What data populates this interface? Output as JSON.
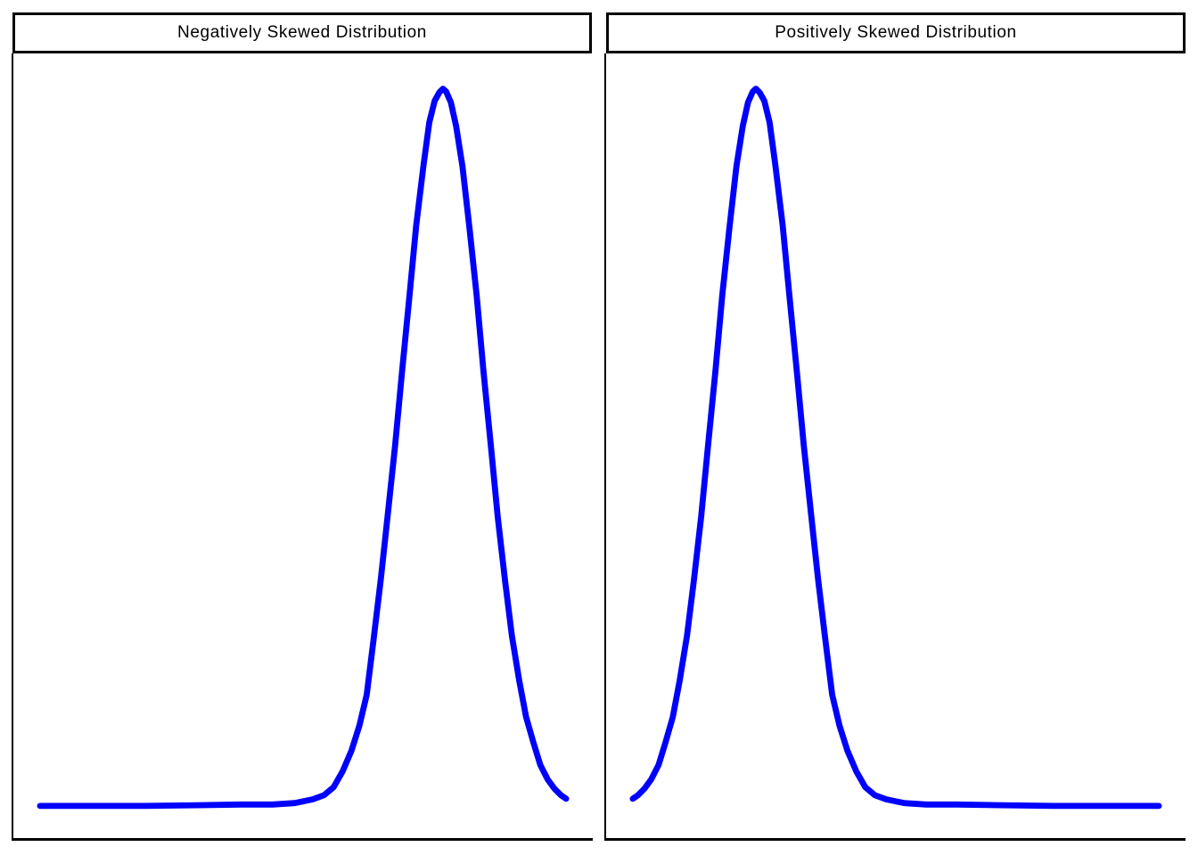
{
  "figure": {
    "background": "#ffffff",
    "frame_color": "#000000",
    "description": "Side-by-side comparison of skewed distribution density curves"
  },
  "chart_data": [
    {
      "type": "line",
      "title": "Negatively Skewed Distribution",
      "skew": "negative",
      "xlabel": "",
      "ylabel": "",
      "axes_visible": false,
      "tick_labels": "none",
      "grid": false,
      "legend": "none",
      "frame": "left-bottom",
      "layout": {
        "x_margin_frac": 0.046,
        "baseline_margin_frac": 0.041,
        "top_margin_frac": 0.045
      },
      "series": [
        {
          "name": "density",
          "color": "#0000FF",
          "stroke_width": 6.8,
          "points": [
            [
              0.0,
              0.0
            ],
            [
              0.096,
              0.0
            ],
            [
              0.197,
              0.0
            ],
            [
              0.299,
              0.001
            ],
            [
              0.383,
              0.002
            ],
            [
              0.442,
              0.002
            ],
            [
              0.484,
              0.004
            ],
            [
              0.518,
              0.009
            ],
            [
              0.54,
              0.015
            ],
            [
              0.558,
              0.026
            ],
            [
              0.575,
              0.048
            ],
            [
              0.592,
              0.077
            ],
            [
              0.607,
              0.112
            ],
            [
              0.621,
              0.155
            ],
            [
              0.634,
              0.232
            ],
            [
              0.648,
              0.317
            ],
            [
              0.661,
              0.406
            ],
            [
              0.675,
              0.503
            ],
            [
              0.688,
              0.605
            ],
            [
              0.702,
              0.709
            ],
            [
              0.715,
              0.809
            ],
            [
              0.729,
              0.894
            ],
            [
              0.74,
              0.953
            ],
            [
              0.75,
              0.983
            ],
            [
              0.759,
              0.995
            ],
            [
              0.766,
              1.0
            ],
            [
              0.772,
              0.996
            ],
            [
              0.781,
              0.981
            ],
            [
              0.791,
              0.948
            ],
            [
              0.803,
              0.892
            ],
            [
              0.816,
              0.808
            ],
            [
              0.83,
              0.711
            ],
            [
              0.843,
              0.606
            ],
            [
              0.857,
              0.502
            ],
            [
              0.87,
              0.403
            ],
            [
              0.884,
              0.314
            ],
            [
              0.897,
              0.237
            ],
            [
              0.911,
              0.174
            ],
            [
              0.924,
              0.124
            ],
            [
              0.938,
              0.088
            ],
            [
              0.951,
              0.057
            ],
            [
              0.965,
              0.037
            ],
            [
              0.978,
              0.024
            ],
            [
              0.99,
              0.015
            ],
            [
              1.0,
              0.01
            ]
          ]
        }
      ]
    },
    {
      "type": "line",
      "title": "Positively Skewed Distribution",
      "skew": "positive",
      "xlabel": "",
      "ylabel": "",
      "axes_visible": false,
      "tick_labels": "none",
      "grid": false,
      "legend": "none",
      "frame": "left-bottom",
      "layout": {
        "x_margin_frac": 0.046,
        "baseline_margin_frac": 0.041,
        "top_margin_frac": 0.045
      },
      "series": [
        {
          "name": "density",
          "color": "#0000FF",
          "stroke_width": 6.8,
          "points": [
            [
              0.0,
              0.01
            ],
            [
              0.01,
              0.015
            ],
            [
              0.022,
              0.024
            ],
            [
              0.035,
              0.037
            ],
            [
              0.049,
              0.057
            ],
            [
              0.062,
              0.088
            ],
            [
              0.076,
              0.124
            ],
            [
              0.089,
              0.174
            ],
            [
              0.103,
              0.237
            ],
            [
              0.116,
              0.314
            ],
            [
              0.13,
              0.403
            ],
            [
              0.143,
              0.502
            ],
            [
              0.157,
              0.606
            ],
            [
              0.17,
              0.711
            ],
            [
              0.184,
              0.808
            ],
            [
              0.197,
              0.892
            ],
            [
              0.209,
              0.948
            ],
            [
              0.219,
              0.981
            ],
            [
              0.228,
              0.996
            ],
            [
              0.234,
              1.0
            ],
            [
              0.241,
              0.995
            ],
            [
              0.25,
              0.983
            ],
            [
              0.26,
              0.953
            ],
            [
              0.271,
              0.894
            ],
            [
              0.285,
              0.809
            ],
            [
              0.298,
              0.709
            ],
            [
              0.312,
              0.605
            ],
            [
              0.325,
              0.503
            ],
            [
              0.339,
              0.406
            ],
            [
              0.352,
              0.317
            ],
            [
              0.366,
              0.232
            ],
            [
              0.379,
              0.155
            ],
            [
              0.393,
              0.112
            ],
            [
              0.408,
              0.077
            ],
            [
              0.425,
              0.048
            ],
            [
              0.442,
              0.026
            ],
            [
              0.46,
              0.015
            ],
            [
              0.482,
              0.009
            ],
            [
              0.516,
              0.004
            ],
            [
              0.558,
              0.002
            ],
            [
              0.617,
              0.002
            ],
            [
              0.701,
              0.001
            ],
            [
              0.803,
              0.0
            ],
            [
              0.904,
              0.0
            ],
            [
              1.0,
              0.0
            ]
          ]
        }
      ]
    }
  ]
}
